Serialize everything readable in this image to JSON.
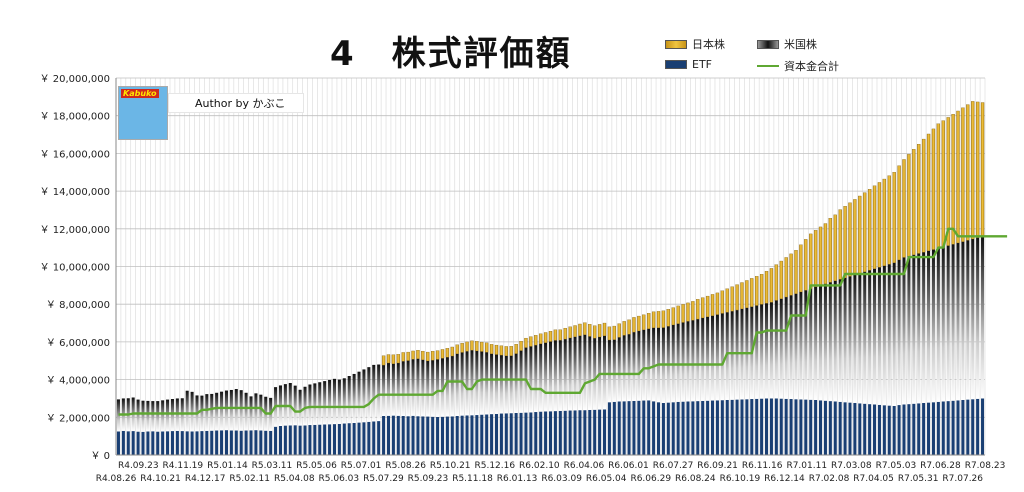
{
  "title": "4　株式評価額",
  "author_box": "Author by かぶこ",
  "logo_text": "Kabuko",
  "legend": [
    {
      "label": "日本株",
      "color": "#e8b830",
      "kind": "bar"
    },
    {
      "label": "米国株",
      "color": "#222222",
      "kind": "bar"
    },
    {
      "label": "ETF",
      "color": "#1a3f73",
      "kind": "bar"
    },
    {
      "label": "資本金合計",
      "color": "#5fa832",
      "kind": "line"
    }
  ],
  "chart_data": {
    "type": "bar",
    "stacked": true,
    "ylim": [
      0,
      20000000
    ],
    "yticks": [
      0,
      2000000,
      4000000,
      6000000,
      8000000,
      10000000,
      12000000,
      14000000,
      16000000,
      18000000,
      20000000
    ],
    "ytick_labels": [
      "￥ 0",
      "￥ 2,000,000",
      "￥ 4,000,000",
      "￥ 6,000,000",
      "￥ 8,000,000",
      "￥ 10,000,000",
      "￥ 12,000,000",
      "￥ 14,000,000",
      "￥ 16,000,000",
      "￥ 18,000,000",
      "￥ 20,000,000"
    ],
    "xtick_labels_upper": [
      "R4.09.23",
      "R4.11.19",
      "R5.01.14",
      "R5.03.11",
      "R5.05.06",
      "R5.07.01",
      "R5.08.26",
      "R5.10.21",
      "R5.12.16",
      "R6.02.10",
      "R6.04.06",
      "R6.06.01",
      "R6.07.27",
      "R6.09.21",
      "R6.11.16",
      "R7.01.11",
      "R7.03.08",
      "R7.05.03",
      "R7.06.28",
      "R7.08.23"
    ],
    "xtick_labels_lower": [
      "R4.08.26",
      "R4.10.21",
      "R4.12.17",
      "R5.02.11",
      "R5.04.08",
      "R5.06.03",
      "R5.07.29",
      "R5.09.23",
      "R5.11.18",
      "R6.01.13",
      "R6.03.09",
      "R6.05.04",
      "R6.06.29",
      "R6.08.24",
      "R6.10.19",
      "R6.12.14",
      "R7.02.08",
      "R7.04.05",
      "R7.05.31",
      "R7.07.26"
    ],
    "grid": true,
    "legend_position": "top-right",
    "series": [
      {
        "name": "ETF",
        "values": [
          1250000,
          1280000,
          1260000,
          1270000,
          1240000,
          1230000,
          1250000,
          1260000,
          1240000,
          1250000,
          1260000,
          1270000,
          1280000,
          1270000,
          1260000,
          1250000,
          1260000,
          1270000,
          1280000,
          1290000,
          1300000,
          1310000,
          1320000,
          1300000,
          1300000,
          1290000,
          1300000,
          1310000,
          1320000,
          1300000,
          1290000,
          1280000,
          1500000,
          1540000,
          1560000,
          1570000,
          1580000,
          1560000,
          1570000,
          1590000,
          1600000,
          1610000,
          1620000,
          1630000,
          1640000,
          1650000,
          1670000,
          1690000,
          1700000,
          1720000,
          1740000,
          1760000,
          1780000,
          1800000,
          2070000,
          2080000,
          2090000,
          2080000,
          2070000,
          2060000,
          2080000,
          2060000,
          2050000,
          2040000,
          2030000,
          2020000,
          2030000,
          2040000,
          2050000,
          2070000,
          2090000,
          2100000,
          2110000,
          2120000,
          2140000,
          2150000,
          2170000,
          2180000,
          2200000,
          2210000,
          2220000,
          2230000,
          2240000,
          2250000,
          2260000,
          2280000,
          2300000,
          2310000,
          2320000,
          2330000,
          2340000,
          2350000,
          2360000,
          2370000,
          2380000,
          2380000,
          2390000,
          2400000,
          2410000,
          2420000,
          2800000,
          2820000,
          2840000,
          2850000,
          2860000,
          2870000,
          2880000,
          2890000,
          2900000,
          2850000,
          2800000,
          2760000,
          2780000,
          2800000,
          2820000,
          2830000,
          2840000,
          2850000,
          2860000,
          2870000,
          2880000,
          2890000,
          2900000,
          2910000,
          2920000,
          2930000,
          2940000,
          2950000,
          2960000,
          2970000,
          2980000,
          2990000,
          3000000,
          3000000,
          3000000,
          2990000,
          2980000,
          2970000,
          2960000,
          2950000,
          2940000,
          2930000,
          2920000,
          2900000,
          2880000,
          2860000,
          2840000,
          2820000,
          2800000,
          2780000,
          2760000,
          2740000,
          2720000,
          2700000,
          2680000,
          2660000,
          2640000,
          2620000,
          2600000,
          2650000,
          2680000,
          2700000,
          2720000,
          2740000,
          2760000,
          2780000,
          2800000,
          2820000,
          2840000,
          2860000,
          2880000,
          2900000,
          2920000,
          2940000,
          2960000,
          2980000,
          3000000
        ]
      },
      {
        "name": "米国株",
        "values": [
          1700000,
          1720000,
          1750000,
          1780000,
          1700000,
          1650000,
          1620000,
          1600000,
          1620000,
          1650000,
          1680000,
          1700000,
          1720000,
          1740000,
          2150000,
          2100000,
          1900000,
          1880000,
          1950000,
          1950000,
          2000000,
          2050000,
          2100000,
          2150000,
          2200000,
          2150000,
          2000000,
          1800000,
          1950000,
          1900000,
          1800000,
          1750000,
          2100000,
          2150000,
          2200000,
          2250000,
          2100000,
          1900000,
          2050000,
          2150000,
          2200000,
          2250000,
          2300000,
          2350000,
          2400000,
          2350000,
          2400000,
          2500000,
          2600000,
          2700000,
          2800000,
          2900000,
          3000000,
          3000000,
          2700000,
          2800000,
          2750000,
          2800000,
          2900000,
          2950000,
          3000000,
          3050000,
          3000000,
          2950000,
          3000000,
          3050000,
          3100000,
          3150000,
          3200000,
          3300000,
          3350000,
          3400000,
          3450000,
          3400000,
          3350000,
          3300000,
          3200000,
          3150000,
          3100000,
          3050000,
          3050000,
          3150000,
          3300000,
          3450000,
          3500000,
          3550000,
          3600000,
          3650000,
          3700000,
          3750000,
          3750000,
          3800000,
          3850000,
          3900000,
          3950000,
          4000000,
          3900000,
          3800000,
          3850000,
          3900000,
          3300000,
          3300000,
          3400000,
          3500000,
          3550000,
          3650000,
          3700000,
          3750000,
          3800000,
          3900000,
          3950000,
          4000000,
          4050000,
          4100000,
          4150000,
          4200000,
          4250000,
          4300000,
          4350000,
          4400000,
          4450000,
          4500000,
          4550000,
          4600000,
          4650000,
          4700000,
          4750000,
          4800000,
          4850000,
          4900000,
          4950000,
          5000000,
          5050000,
          5100000,
          5200000,
          5300000,
          5400000,
          5500000,
          5600000,
          5700000,
          5800000,
          5900000,
          6000000,
          6100000,
          6200000,
          6300000,
          6400000,
          6500000,
          6600000,
          6700000,
          6800000,
          6900000,
          7000000,
          7100000,
          7200000,
          7300000,
          7400000,
          7500000,
          7600000,
          7700000,
          7800000,
          7850000,
          7900000,
          7950000,
          8000000,
          8050000,
          8100000,
          8150000,
          8200000,
          8250000,
          8300000,
          8350000,
          8400000,
          8450000,
          8500000,
          8550000,
          8600000,
          8650000,
          9000000,
          9000000
        ]
      },
      {
        "name": "日本株",
        "values": [
          0,
          0,
          0,
          0,
          0,
          0,
          0,
          0,
          0,
          0,
          0,
          0,
          0,
          0,
          0,
          0,
          0,
          0,
          0,
          0,
          0,
          0,
          0,
          0,
          0,
          0,
          0,
          0,
          0,
          0,
          0,
          0,
          0,
          0,
          0,
          0,
          0,
          0,
          0,
          0,
          0,
          0,
          0,
          0,
          0,
          0,
          0,
          0,
          0,
          0,
          0,
          0,
          0,
          0,
          500000,
          450000,
          480000,
          460000,
          470000,
          450000,
          440000,
          450000,
          460000,
          470000,
          480000,
          470000,
          470000,
          470000,
          480000,
          480000,
          490000,
          500000,
          500000,
          510000,
          500000,
          500000,
          500000,
          500000,
          500000,
          500000,
          500000,
          500000,
          500000,
          500000,
          520000,
          520000,
          530000,
          540000,
          550000,
          560000,
          560000,
          580000,
          590000,
          600000,
          620000,
          640000,
          650000,
          660000,
          670000,
          680000,
          700000,
          720000,
          730000,
          740000,
          760000,
          780000,
          790000,
          800000,
          820000,
          850000,
          870000,
          890000,
          900000,
          920000,
          940000,
          960000,
          980000,
          1000000,
          1050000,
          1080000,
          1100000,
          1130000,
          1150000,
          1200000,
          1250000,
          1300000,
          1350000,
          1400000,
          1450000,
          1500000,
          1550000,
          1600000,
          1700000,
          1800000,
          1900000,
          2000000,
          2100000,
          2200000,
          2300000,
          2500000,
          2700000,
          2900000,
          3000000,
          3100000,
          3200000,
          3400000,
          3500000,
          3700000,
          3800000,
          3900000,
          4000000,
          4100000,
          4200000,
          4300000,
          4400000,
          4500000,
          4600000,
          4700000,
          4800000,
          5000000,
          5200000,
          5400000,
          5600000,
          5800000,
          6000000,
          6200000,
          6400000,
          6600000,
          6700000,
          6800000,
          6900000,
          7000000,
          7100000,
          7200000,
          7300000,
          7200000,
          7100000,
          7000000,
          7100000
        ]
      }
    ],
    "line": {
      "name": "資本金合計",
      "values": [
        2150000,
        2150000,
        2150000,
        2200000,
        2200000,
        2200000,
        2200000,
        2200000,
        2200000,
        2200000,
        2200000,
        2200000,
        2200000,
        2200000,
        2200000,
        2200000,
        2200000,
        2400000,
        2400000,
        2450000,
        2500000,
        2500000,
        2500000,
        2500000,
        2500000,
        2500000,
        2500000,
        2500000,
        2500000,
        2500000,
        2200000,
        2200000,
        2600000,
        2600000,
        2600000,
        2600000,
        2300000,
        2300000,
        2500000,
        2550000,
        2550000,
        2550000,
        2550000,
        2550000,
        2550000,
        2550000,
        2550000,
        2550000,
        2550000,
        2550000,
        2550000,
        2700000,
        3000000,
        3200000,
        3200000,
        3200000,
        3200000,
        3200000,
        3200000,
        3200000,
        3200000,
        3200000,
        3200000,
        3200000,
        3200000,
        3400000,
        3400000,
        3900000,
        3900000,
        3900000,
        3900000,
        3500000,
        3500000,
        3900000,
        4000000,
        4000000,
        4000000,
        4000000,
        4000000,
        4000000,
        4000000,
        4000000,
        4000000,
        4000000,
        3500000,
        3500000,
        3500000,
        3300000,
        3300000,
        3300000,
        3300000,
        3300000,
        3300000,
        3300000,
        3300000,
        3800000,
        3900000,
        4000000,
        4300000,
        4300000,
        4300000,
        4300000,
        4300000,
        4300000,
        4300000,
        4300000,
        4300000,
        4600000,
        4600000,
        4700000,
        4800000,
        4800000,
        4800000,
        4800000,
        4800000,
        4800000,
        4800000,
        4800000,
        4800000,
        4800000,
        4800000,
        4800000,
        4800000,
        4800000,
        5400000,
        5400000,
        5400000,
        5400000,
        5400000,
        5400000,
        6500000,
        6500000,
        6600000,
        6600000,
        6600000,
        6600000,
        6600000,
        7400000,
        7400000,
        7400000,
        7400000,
        9000000,
        9000000,
        9000000,
        9000000,
        9000000,
        9000000,
        9000000,
        9600000,
        9600000,
        9600000,
        9600000,
        9600000,
        9600000,
        9600000,
        9600000,
        9600000,
        9600000,
        9600000,
        9600000,
        9600000,
        10500000,
        10500000,
        10500000,
        10500000,
        10500000,
        10500000,
        11000000,
        11000000,
        12000000,
        12000000,
        11600000,
        11600000,
        11600000,
        11600000,
        11600000,
        11600000,
        11600000,
        11600000,
        11600000,
        11600000,
        11600000
      ]
    }
  }
}
